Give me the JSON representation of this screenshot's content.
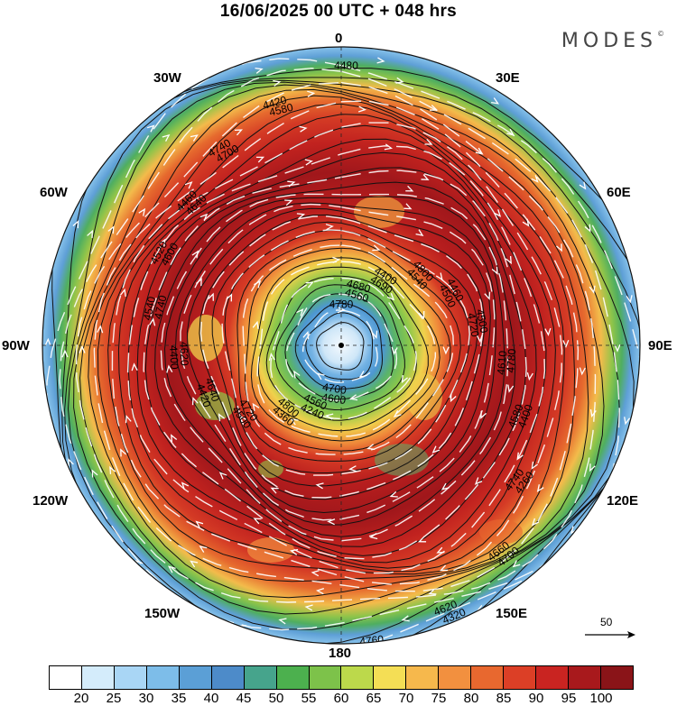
{
  "title": "16/06/2025  00 UTC  + 048 hrs",
  "brand": "MODES",
  "brand_mark": "©",
  "longitude_labels": {
    "lon_0": "0",
    "lon_30e": "30E",
    "lon_60e": "60E",
    "lon_90e": "90E",
    "lon_120e": "120E",
    "lon_150e": "150E",
    "lon_180": "180",
    "lon_150w": "150W",
    "lon_120w": "120W",
    "lon_90w": "90W",
    "lon_60w": "60W",
    "lon_30w": "30W"
  },
  "reference_vector": {
    "value": "50"
  },
  "colorbar": {
    "colors": [
      "#ffffff",
      "#d4ecfb",
      "#a9d6f5",
      "#7dbde9",
      "#5b9fd6",
      "#4d8bc9",
      "#46a48c",
      "#4cb04e",
      "#7dc24a",
      "#bcd94b",
      "#f4de55",
      "#f6b84c",
      "#f2903f",
      "#e8682f",
      "#dc3f26",
      "#c92421",
      "#a8191c",
      "#8a1418"
    ],
    "ticks": [
      "20",
      "25",
      "30",
      "35",
      "40",
      "45",
      "50",
      "55",
      "60",
      "65",
      "70",
      "75",
      "80",
      "85",
      "90",
      "95",
      "100"
    ]
  },
  "contour_labels": [
    "4780",
    "4800",
    "4780",
    "4700",
    "4600",
    "4500",
    "4540",
    "4740",
    "4680",
    "4460",
    "4400",
    "4320",
    "4240",
    "4420",
    "4520",
    "4420",
    "4400",
    "4500",
    "4260",
    "4340",
    "4360",
    "4400",
    "4460",
    "4480",
    "4540",
    "4610",
    "4660",
    "4700",
    "4720",
    "4740",
    "4700",
    "4560",
    "4500",
    "4580",
    "4620",
    "4560",
    "4640",
    "4600",
    "4580",
    "4690",
    "4720",
    "4740",
    "4760",
    "4800",
    "4620",
    "4640"
  ]
}
